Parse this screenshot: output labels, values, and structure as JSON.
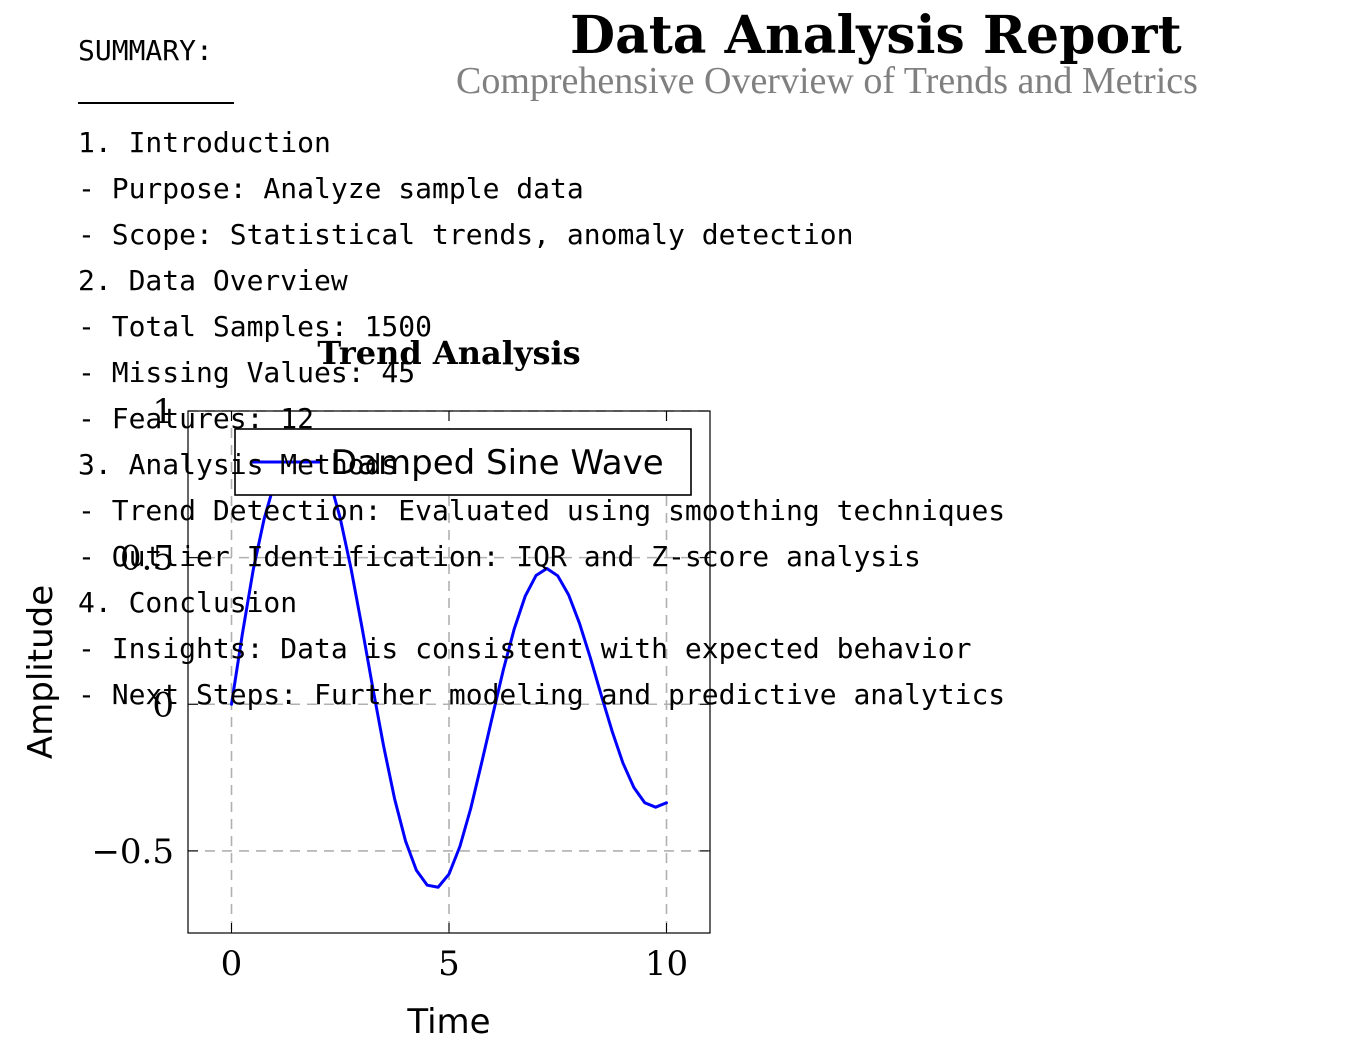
{
  "report": {
    "title": "Data Analysis Report",
    "subtitle": "Comprehensive Overview of Trends and Metrics"
  },
  "summary": {
    "heading": "SUMMARY:",
    "lines": [
      "1.  Introduction",
      "- Purpose:  Analyze sample data",
      "- Scope:  Statistical trends, anomaly detection",
      "2.  Data Overview",
      "- Total Samples:  1500",
      "- Missing Values:  45",
      "- Features:  12",
      "3.  Analysis Methods",
      "- Trend Detection:  Evaluated using smoothing techniques",
      "- Outlier Identification:  IQR and Z-score analysis",
      "4.  Conclusion",
      "- Insights:  Data is consistent with expected behavior",
      "- Next Steps:  Further modeling and predictive analytics"
    ]
  },
  "chart_data": {
    "type": "line",
    "title": "Trend Analysis",
    "xlabel": "Time",
    "ylabel": "Amplitude",
    "xlim": [
      -1,
      11
    ],
    "ylim": [
      -0.78,
      1.0
    ],
    "xticks": [
      0,
      5,
      10
    ],
    "yticks": [
      -0.5,
      0,
      0.5,
      1
    ],
    "ytick_labels": [
      "−0.5",
      "0",
      "0.5",
      "1"
    ],
    "grid": true,
    "grid_style": "dashed",
    "legend_position": "top",
    "series": [
      {
        "name": "Damped Sine Wave",
        "color": "#0000ff",
        "x": [
          0,
          0.25,
          0.5,
          0.75,
          1,
          1.25,
          1.5,
          1.75,
          2,
          2.25,
          2.5,
          2.75,
          3,
          3.25,
          3.5,
          3.75,
          4,
          4.25,
          4.5,
          4.75,
          5,
          5.25,
          5.5,
          5.75,
          6,
          6.25,
          6.5,
          6.75,
          7,
          7.25,
          7.5,
          7.75,
          8,
          8.25,
          8.5,
          8.75,
          9,
          9.25,
          9.5,
          9.75,
          10
        ],
        "y": [
          0,
          0.24,
          0.459,
          0.632,
          0.761,
          0.853,
          0.902,
          0.905,
          0.863,
          0.769,
          0.634,
          0.461,
          0.262,
          0.054,
          -0.145,
          -0.323,
          -0.466,
          -0.566,
          -0.617,
          -0.624,
          -0.579,
          -0.485,
          -0.355,
          -0.2,
          -0.04,
          0.118,
          0.257,
          0.368,
          0.439,
          0.463,
          0.438,
          0.373,
          0.276,
          0.158,
          0.031,
          -0.092,
          -0.201,
          -0.284,
          -0.336,
          -0.351,
          -0.336
        ]
      }
    ]
  }
}
